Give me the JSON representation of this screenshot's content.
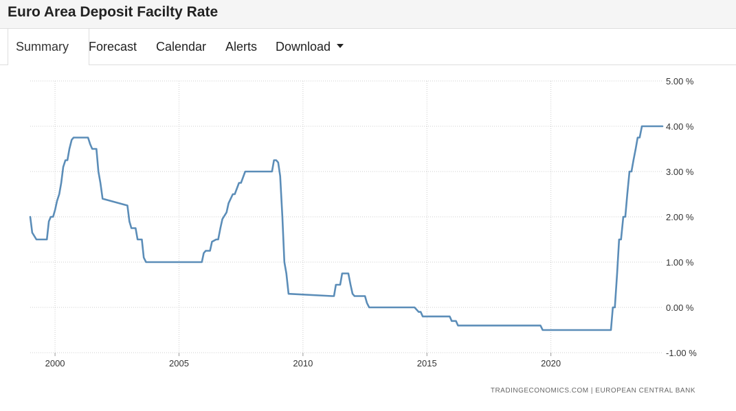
{
  "header": {
    "title": "Euro Area Deposit Facilty Rate"
  },
  "tabs": [
    {
      "label": "Summary",
      "active": true
    },
    {
      "label": "Forecast",
      "active": false
    },
    {
      "label": "Calendar",
      "active": false
    },
    {
      "label": "Alerts",
      "active": false
    },
    {
      "label": "Download",
      "active": false,
      "has_dropdown": true
    }
  ],
  "chart_data": {
    "type": "line",
    "title": "",
    "xlabel": "",
    "ylabel": "",
    "xlim": [
      1999.0,
      2024.5
    ],
    "ylim": [
      -1.0,
      5.0
    ],
    "x_ticks": [
      2000,
      2005,
      2010,
      2015,
      2020
    ],
    "x_tick_labels": [
      "2000",
      "2005",
      "2010",
      "2015",
      "2020"
    ],
    "y_ticks": [
      -1,
      0,
      1,
      2,
      3,
      4,
      5
    ],
    "y_tick_labels": [
      "-1.00 %",
      "0.00 %",
      "1.00 %",
      "2.00 %",
      "3.00 %",
      "4.00 %",
      "5.00 %"
    ],
    "grid": true,
    "line_color": "#5b8db8",
    "source": "TRADINGECONOMICS.COM  |  EUROPEAN CENTRAL BANK",
    "series": [
      {
        "x": [
          1999.0,
          1999.08,
          1999.25,
          1999.67,
          1999.75,
          1999.83,
          1999.92,
          2000.0,
          2000.08,
          2000.17,
          2000.25,
          2000.33,
          2000.42,
          2000.5,
          2000.58,
          2000.67,
          2000.75,
          2000.83,
          2001.33,
          2001.42,
          2001.5,
          2001.67,
          2001.75,
          2001.83,
          2001.92,
          2002.92,
          2003.0,
          2003.08,
          2003.25,
          2003.33,
          2003.5,
          2003.58,
          2003.67,
          2005.92,
          2006.0,
          2006.08,
          2006.25,
          2006.33,
          2006.5,
          2006.58,
          2006.67,
          2006.75,
          2006.92,
          2007.0,
          2007.17,
          2007.25,
          2007.42,
          2007.5,
          2007.67,
          2007.75,
          2008.75,
          2008.83,
          2008.92,
          2009.0,
          2009.08,
          2009.17,
          2009.25,
          2009.33,
          2009.42,
          2011.17,
          2011.25,
          2011.33,
          2011.5,
          2011.58,
          2011.83,
          2011.92,
          2012.0,
          2012.08,
          2012.5,
          2012.58,
          2012.67,
          2014.42,
          2014.5,
          2014.67,
          2014.75,
          2014.83,
          2015.92,
          2016.0,
          2016.17,
          2016.25,
          2019.58,
          2019.67,
          2022.42,
          2022.5,
          2022.58,
          2022.67,
          2022.75,
          2022.83,
          2022.92,
          2023.0,
          2023.08,
          2023.17,
          2023.25,
          2023.33,
          2023.42,
          2023.5,
          2023.58,
          2023.67,
          2023.75,
          2023.92,
          2024.5
        ],
        "values": [
          2.0,
          1.65,
          1.5,
          1.5,
          1.9,
          2.0,
          2.0,
          2.15,
          2.35,
          2.5,
          2.75,
          3.1,
          3.25,
          3.25,
          3.5,
          3.7,
          3.75,
          3.75,
          3.75,
          3.6,
          3.5,
          3.5,
          3.0,
          2.75,
          2.4,
          2.25,
          1.9,
          1.75,
          1.75,
          1.5,
          1.5,
          1.1,
          1.0,
          1.0,
          1.2,
          1.25,
          1.25,
          1.45,
          1.5,
          1.5,
          1.75,
          1.95,
          2.1,
          2.3,
          2.5,
          2.5,
          2.75,
          2.75,
          3.0,
          3.0,
          3.0,
          3.25,
          3.25,
          3.2,
          2.9,
          2.0,
          1.0,
          0.75,
          0.3,
          0.25,
          0.25,
          0.5,
          0.5,
          0.75,
          0.75,
          0.5,
          0.3,
          0.25,
          0.25,
          0.1,
          0.0,
          0.0,
          0.0,
          -0.1,
          -0.1,
          -0.2,
          -0.2,
          -0.3,
          -0.3,
          -0.4,
          -0.4,
          -0.5,
          -0.5,
          0.0,
          0.0,
          0.75,
          1.5,
          1.5,
          2.0,
          2.0,
          2.5,
          3.0,
          3.0,
          3.25,
          3.5,
          3.75,
          3.75,
          4.0,
          4.0,
          4.0,
          4.0
        ]
      }
    ]
  }
}
